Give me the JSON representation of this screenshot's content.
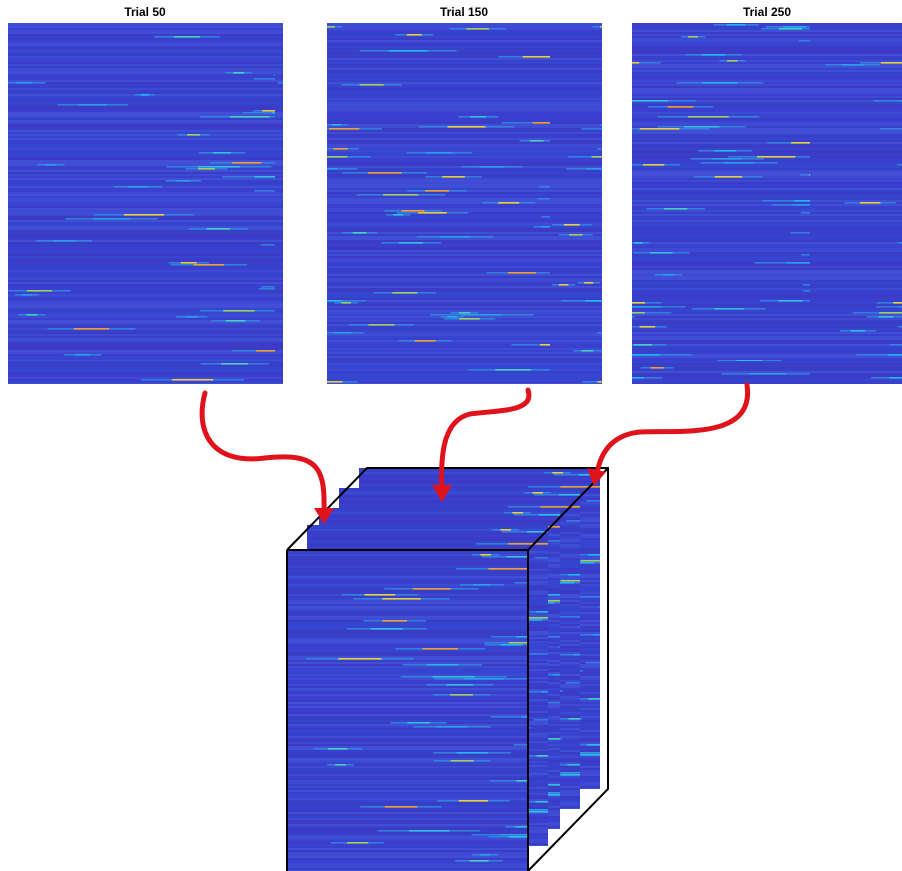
{
  "panels": [
    {
      "title": "Trial 50"
    },
    {
      "title": "Trial 150"
    },
    {
      "title": "Trial 250"
    }
  ]
}
